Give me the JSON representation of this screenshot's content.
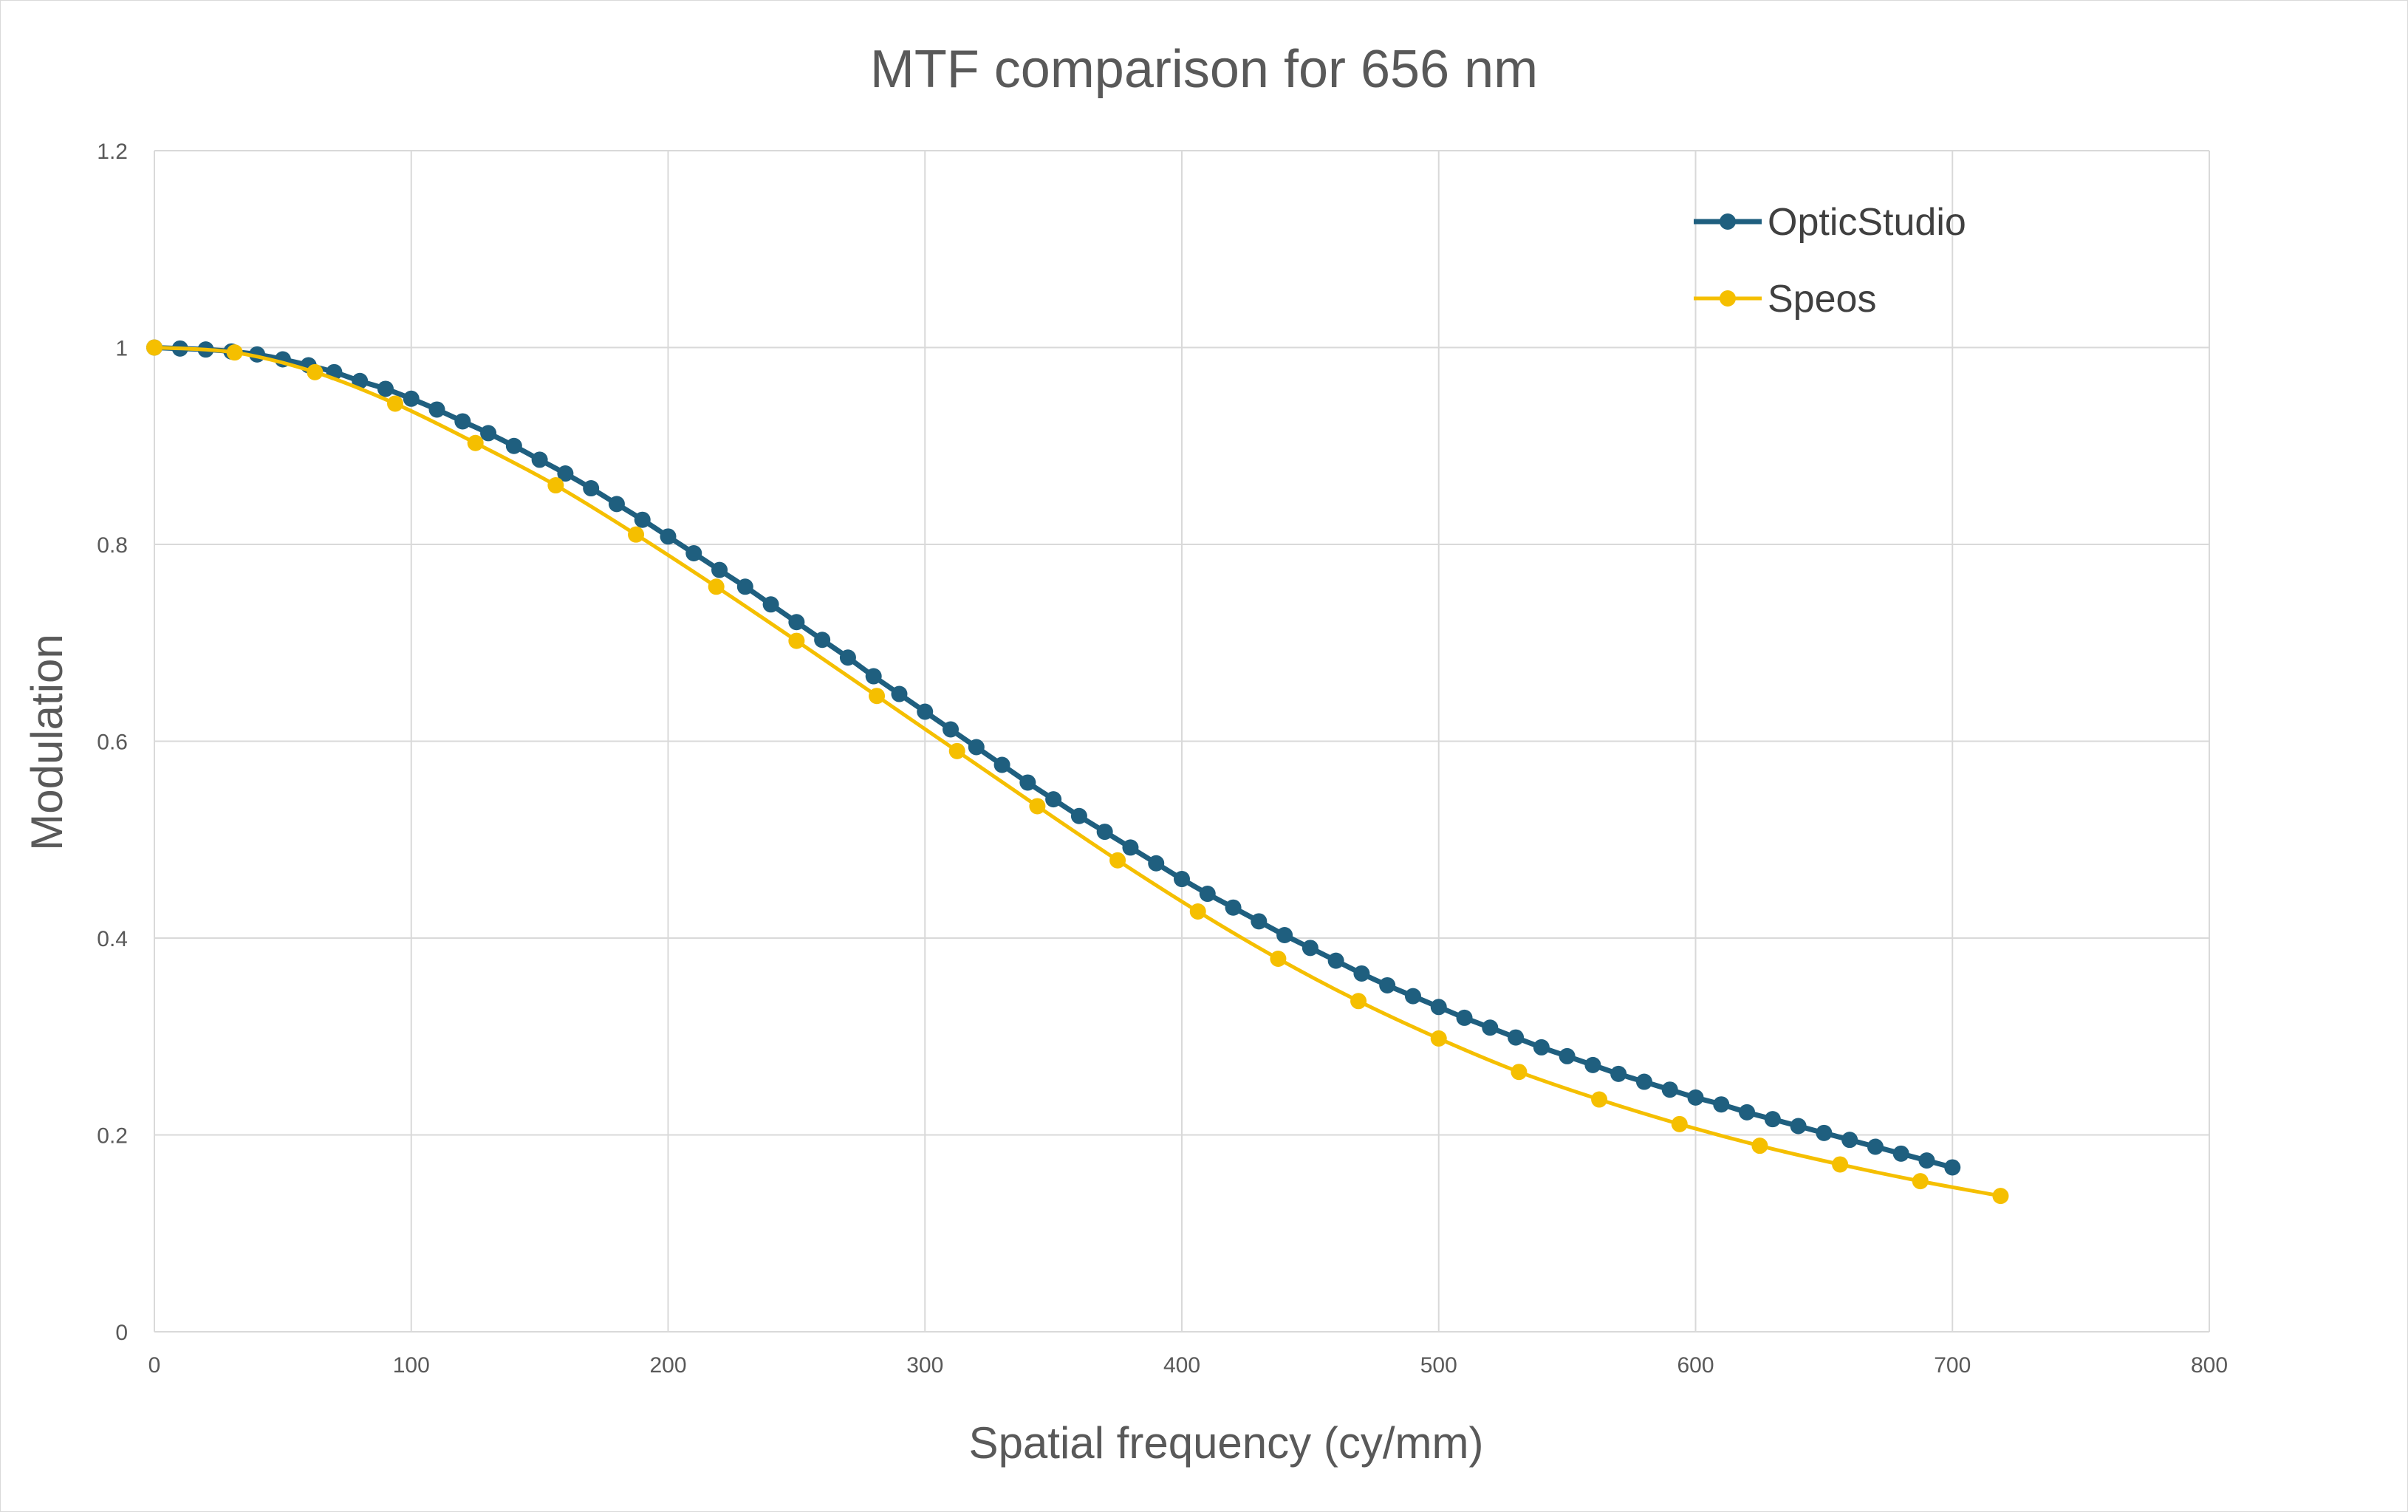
{
  "chart_data": {
    "type": "line",
    "title": "MTF comparison for 656 nm",
    "xlabel": "Spatial frequency (cy/mm)",
    "ylabel": "Modulation",
    "xlim": [
      0,
      800
    ],
    "ylim": [
      0,
      1.2
    ],
    "x_ticks": [
      0,
      100,
      200,
      300,
      400,
      500,
      600,
      700,
      800
    ],
    "y_ticks": [
      0,
      0.2,
      0.4,
      0.6,
      0.8,
      1,
      1.2
    ],
    "x_tick_labels": [
      "0",
      "100",
      "200",
      "300",
      "400",
      "500",
      "600",
      "700",
      "800"
    ],
    "y_tick_labels": [
      "0",
      "0.2",
      "0.4",
      "0.6",
      "0.8",
      "1",
      "1.2"
    ],
    "grid": true,
    "legend_position": "top-right",
    "series": [
      {
        "name": "OpticStudio",
        "color": "#1f5f7f",
        "x": [
          0,
          10,
          20,
          30,
          40,
          50,
          60,
          70,
          80,
          90,
          100,
          110,
          120,
          130,
          140,
          150,
          160,
          170,
          180,
          190,
          200,
          210,
          220,
          230,
          240,
          250,
          260,
          270,
          280,
          290,
          300,
          310,
          320,
          330,
          340,
          350,
          360,
          370,
          380,
          390,
          400,
          410,
          420,
          430,
          440,
          450,
          460,
          470,
          480,
          490,
          500,
          510,
          520,
          530,
          540,
          550,
          560,
          570,
          580,
          590,
          600,
          610,
          620,
          630,
          640,
          650,
          660,
          670,
          680,
          690,
          700
        ],
        "y": [
          1.0,
          0.999,
          0.998,
          0.996,
          0.993,
          0.988,
          0.982,
          0.975,
          0.966,
          0.958,
          0.948,
          0.937,
          0.925,
          0.913,
          0.9,
          0.886,
          0.872,
          0.857,
          0.841,
          0.825,
          0.808,
          0.791,
          0.774,
          0.757,
          0.739,
          0.721,
          0.703,
          0.685,
          0.666,
          0.648,
          0.63,
          0.612,
          0.594,
          0.576,
          0.558,
          0.541,
          0.524,
          0.508,
          0.492,
          0.476,
          0.46,
          0.445,
          0.431,
          0.417,
          0.403,
          0.39,
          0.377,
          0.364,
          0.352,
          0.341,
          0.33,
          0.319,
          0.309,
          0.299,
          0.289,
          0.28,
          0.271,
          0.262,
          0.254,
          0.246,
          0.238,
          0.231,
          0.223,
          0.216,
          0.209,
          0.202,
          0.195,
          0.188,
          0.181,
          0.174,
          0.167
        ]
      },
      {
        "name": "Speos",
        "color": "#f5bf00",
        "x": [
          0,
          31.25,
          62.5,
          93.75,
          125,
          156.25,
          187.5,
          218.75,
          250,
          281.25,
          312.5,
          343.75,
          375,
          406.25,
          437.5,
          468.75,
          500,
          531.25,
          562.5,
          593.75,
          625,
          656.25,
          687.5,
          718.75
        ],
        "y": [
          1.0,
          0.995,
          0.975,
          0.943,
          0.903,
          0.86,
          0.81,
          0.757,
          0.702,
          0.646,
          0.59,
          0.534,
          0.479,
          0.427,
          0.379,
          0.336,
          0.298,
          0.264,
          0.236,
          0.211,
          0.189,
          0.17,
          0.153,
          0.138
        ]
      }
    ]
  }
}
